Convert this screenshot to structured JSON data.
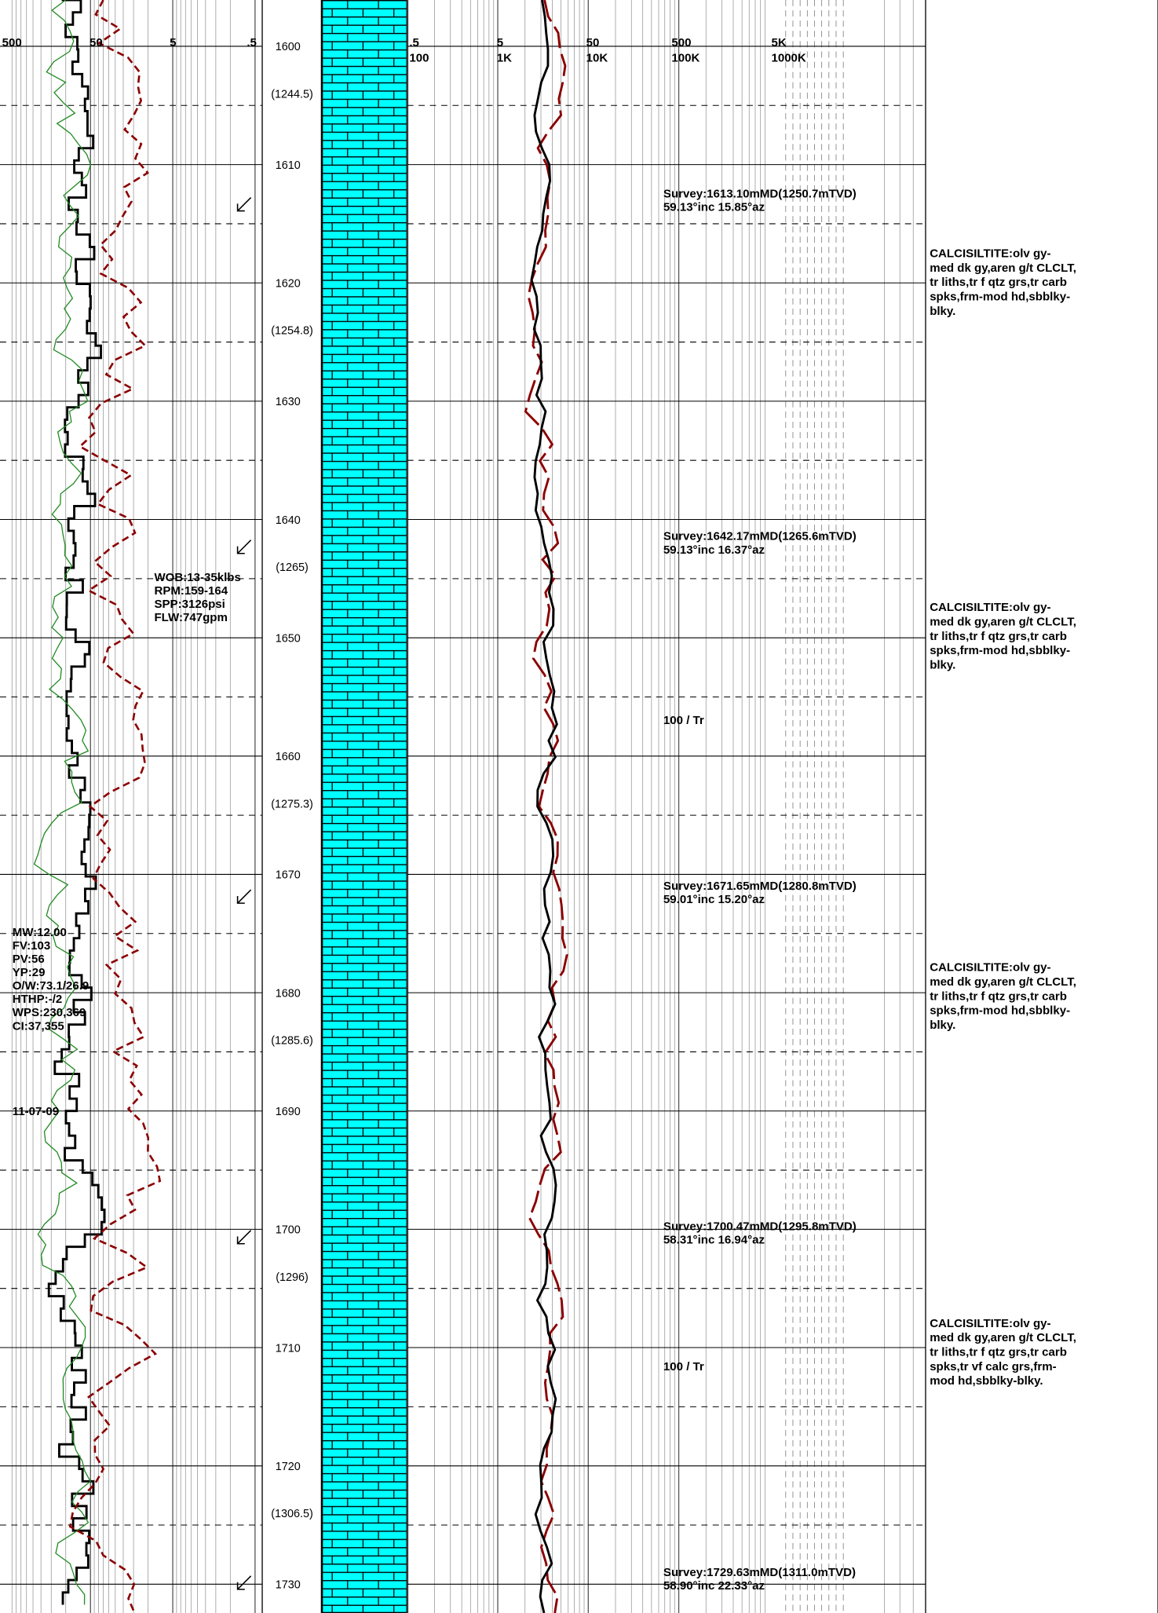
{
  "scales": {
    "left": [
      "500",
      "50",
      "5",
      ".5"
    ],
    "right_top": [
      ".5",
      "5",
      "50",
      "500",
      "5K"
    ],
    "right_bottom": [
      "100",
      "1K",
      "10K",
      "100K",
      "1000K"
    ]
  },
  "depths": [
    "1600",
    "1610",
    "1620",
    "1630",
    "1640",
    "1650",
    "1660",
    "1670",
    "1680",
    "1690",
    "1700",
    "1710",
    "1720",
    "1730"
  ],
  "tvd_marks": [
    "(1244.5)",
    "(1254.8)",
    "(1265)",
    "(1275.3)",
    "(1285.6)",
    "(1296)",
    "(1306.5)"
  ],
  "surveys": [
    [
      "Survey:1613.10mMD(1250.7mTVD)",
      "59.13°inc 15.85°az"
    ],
    [
      "Survey:1642.17mMD(1265.6mTVD)",
      "59.13°inc 16.37°az"
    ],
    [
      "Survey:1671.65mMD(1280.8mTVD)",
      "59.01°inc 15.20°az"
    ],
    [
      "Survey:1700.47mMD(1295.8mTVD)",
      "58.31°inc 16.94°az"
    ],
    [
      "Survey:1729.63mMD(1311.0mTVD)",
      "58.90°inc 22.33°az"
    ]
  ],
  "descriptions": [
    [
      "CALCISILTITE:olv gy-",
      "med dk gy,aren g/t CLCLT,",
      "tr liths,tr f qtz grs,tr carb",
      "spks,frm-mod hd,sbblky-",
      "blky."
    ],
    [
      "CALCISILTITE:olv gy-",
      "med dk gy,aren g/t CLCLT,",
      "tr liths,tr f qtz grs,tr carb",
      "spks,frm-mod hd,sbblky-",
      "blky."
    ],
    [
      "CALCISILTITE:olv gy-",
      "med dk gy,aren g/t CLCLT,",
      "tr liths,tr f qtz grs,tr carb",
      "spks,frm-mod hd,sbblky-",
      "blky."
    ],
    [
      "CALCISILTITE:olv gy-",
      "med dk gy,aren g/t CLCLT,",
      "tr liths,tr f qtz grs,tr carb",
      "spks,tr vf calc grs,frm-",
      "mod hd,sbblky-blky."
    ]
  ],
  "drilling_params": [
    "WOB:13-35klbs",
    "RPM:159-164",
    "SPP:3126psi",
    "FLW:747gpm"
  ],
  "mud_props": [
    "MW:12.00",
    "FV:103",
    "PV:56",
    "YP:29",
    "O/W:73.1/26.9",
    "HTHP:-/2",
    "WPS:230,369",
    "CI:37,355"
  ],
  "date": "11-07-09",
  "shows": [
    "100 / Tr",
    "100 / Tr"
  ]
}
